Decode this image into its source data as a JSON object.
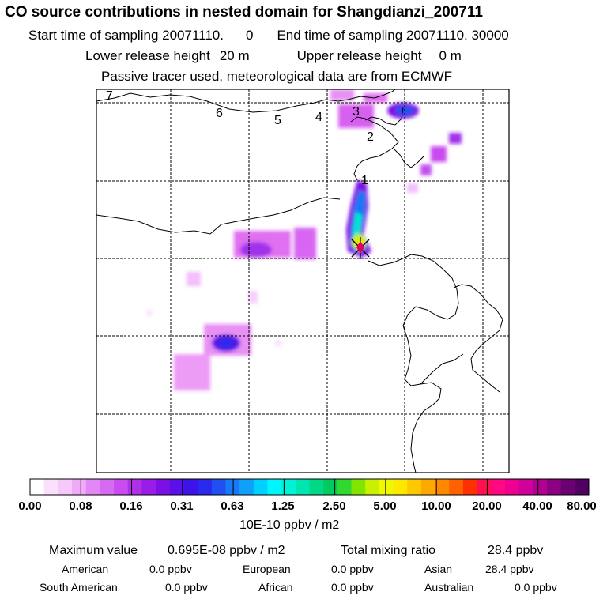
{
  "header": {
    "title": "CO  source contributions in nested domain for Shangdianzi_200711",
    "start_label": "Start time of sampling 20071110.",
    "start_value": "0",
    "end_label": "End time of sampling 20071110. 30000",
    "lower_label": "Lower release height",
    "lower_value": "20 m",
    "upper_label": "Upper release height",
    "upper_value": "0 m",
    "note": "Passive tracer used, meteorological data are from ECMWF"
  },
  "map": {
    "trajectory_labels": [
      "7",
      "6",
      "5",
      "4",
      "3",
      "2",
      "1"
    ],
    "colors": {
      "plume_low": "#e070f0",
      "plume_mid": "#8000e0",
      "plume_high": "#2040ff",
      "plume_core_cyan": "#00e0ff",
      "plume_core_yellow": "#ffff00",
      "receptor": "#e00060"
    }
  },
  "colorbar": {
    "tick_labels": [
      "0.00",
      "0.08",
      "0.16",
      "0.31",
      "0.63",
      "1.25",
      "2.50",
      "5.00",
      "10.00",
      "20.00",
      "40.00",
      "80.00"
    ],
    "unit": "10E-10 ppbv / m2",
    "colors": [
      "#ffffff",
      "#fbe0fd",
      "#f6c8fb",
      "#efabf8",
      "#e487f6",
      "#d66bf2",
      "#c84cf0",
      "#b030ea",
      "#9a1ce6",
      "#7c10e4",
      "#5a10e6",
      "#3c14ea",
      "#2a2aee",
      "#2050f2",
      "#1878f6",
      "#0fa0fa",
      "#00d0ff",
      "#00f6ff",
      "#00f2d8",
      "#00e6b0",
      "#00d888",
      "#00ca60",
      "#30d830",
      "#80e600",
      "#c8f000",
      "#f0f800",
      "#ffe800",
      "#ffc800",
      "#ffa800",
      "#ff8800",
      "#ff6000",
      "#ff3000",
      "#ff1050",
      "#ff0880",
      "#f00090",
      "#d0009a",
      "#b00090",
      "#8c0084",
      "#6c0070",
      "#500060"
    ]
  },
  "summary": {
    "max_label": "Maximum value",
    "max_value": "0.695E-08 ppbv / m2",
    "total_label": "Total mixing ratio",
    "total_value": "28.4 ppbv",
    "regions": [
      {
        "name": "American",
        "value": "0.0 ppbv"
      },
      {
        "name": "European",
        "value": "0.0 ppbv"
      },
      {
        "name": "Asian",
        "value": "28.4 ppbv"
      },
      {
        "name": "South American",
        "value": "0.0 ppbv"
      },
      {
        "name": "African",
        "value": "0.0 ppbv"
      },
      {
        "name": "Australian",
        "value": "0.0 ppbv"
      }
    ]
  }
}
